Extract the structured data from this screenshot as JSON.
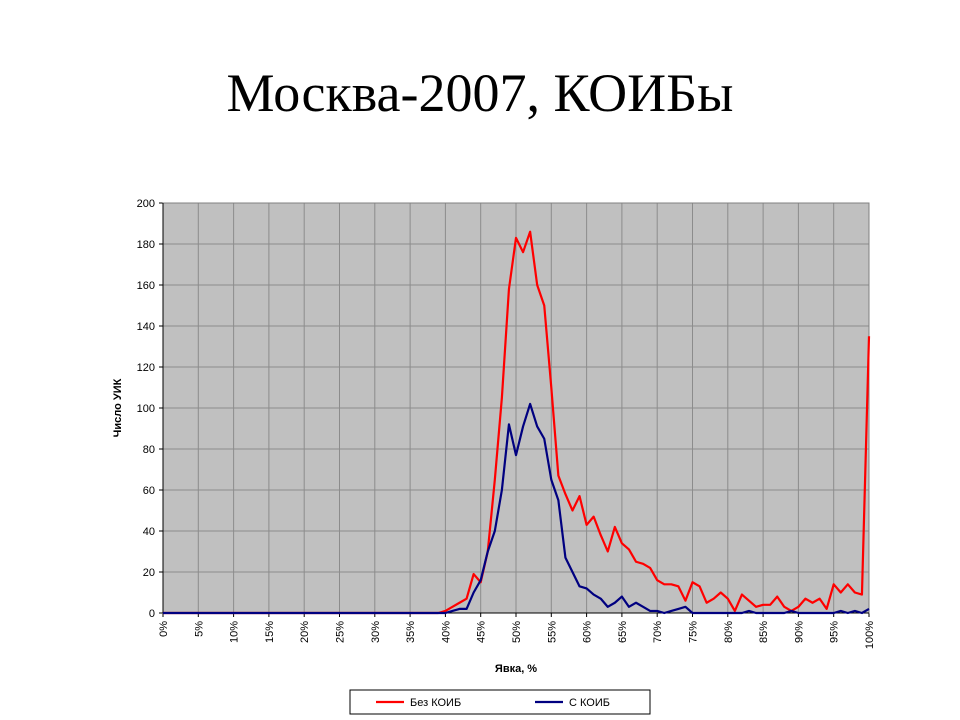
{
  "slide": {
    "title": "Москва-2007, КОИБы"
  },
  "chart_data": {
    "type": "line",
    "xlabel": "Явка, %",
    "ylabel": "Число УИК",
    "xlim": [
      0,
      100
    ],
    "ylim": [
      0,
      200
    ],
    "x_ticks": [
      "0%",
      "5%",
      "10%",
      "15%",
      "20%",
      "25%",
      "30%",
      "35%",
      "40%",
      "45%",
      "50%",
      "55%",
      "60%",
      "65%",
      "70%",
      "75%",
      "80%",
      "85%",
      "90%",
      "95%",
      "100%"
    ],
    "y_ticks": [
      "0",
      "20",
      "40",
      "60",
      "80",
      "100",
      "120",
      "140",
      "160",
      "180",
      "200"
    ],
    "grid": true,
    "legend_position": "bottom",
    "colors": {
      "plot_bg": "#c0c0c0",
      "grid": "#8c8c8c",
      "series1": "#ff0000",
      "series2": "#000080"
    },
    "x": [
      0,
      1,
      2,
      3,
      4,
      5,
      6,
      7,
      8,
      9,
      10,
      11,
      12,
      13,
      14,
      15,
      16,
      17,
      18,
      19,
      20,
      21,
      22,
      23,
      24,
      25,
      26,
      27,
      28,
      29,
      30,
      31,
      32,
      33,
      34,
      35,
      36,
      37,
      38,
      39,
      40,
      41,
      42,
      43,
      44,
      45,
      46,
      47,
      48,
      49,
      50,
      51,
      52,
      53,
      54,
      55,
      56,
      57,
      58,
      59,
      60,
      61,
      62,
      63,
      64,
      65,
      66,
      67,
      68,
      69,
      70,
      71,
      72,
      73,
      74,
      75,
      76,
      77,
      78,
      79,
      80,
      81,
      82,
      83,
      84,
      85,
      86,
      87,
      88,
      89,
      90,
      91,
      92,
      93,
      94,
      95,
      96,
      97,
      98,
      99,
      100
    ],
    "series": [
      {
        "name": "Без КОИБ",
        "values": [
          0,
          0,
          0,
          0,
          0,
          0,
          0,
          0,
          0,
          0,
          0,
          0,
          0,
          0,
          0,
          0,
          0,
          0,
          0,
          0,
          0,
          0,
          0,
          0,
          0,
          0,
          0,
          0,
          0,
          0,
          0,
          0,
          0,
          0,
          0,
          0,
          0,
          0,
          0,
          0,
          1,
          3,
          5,
          7,
          19,
          15,
          30,
          65,
          105,
          158,
          183,
          176,
          186,
          160,
          150,
          110,
          67,
          58,
          50,
          57,
          43,
          47,
          38,
          30,
          42,
          34,
          31,
          25,
          24,
          22,
          16,
          14,
          14,
          13,
          6,
          15,
          13,
          5,
          7,
          10,
          7,
          1,
          9,
          6,
          3,
          4,
          4,
          8,
          3,
          1,
          3,
          7,
          5,
          7,
          2,
          14,
          10,
          14,
          10,
          9,
          135
        ]
      },
      {
        "name": "С КОИБ",
        "values": [
          0,
          0,
          0,
          0,
          0,
          0,
          0,
          0,
          0,
          0,
          0,
          0,
          0,
          0,
          0,
          0,
          0,
          0,
          0,
          0,
          0,
          0,
          0,
          0,
          0,
          0,
          0,
          0,
          0,
          0,
          0,
          0,
          0,
          0,
          0,
          0,
          0,
          0,
          0,
          0,
          0,
          1,
          2,
          2,
          10,
          16,
          30,
          40,
          60,
          92,
          77,
          91,
          102,
          91,
          85,
          65,
          55,
          27,
          20,
          13,
          12,
          9,
          7,
          3,
          5,
          8,
          3,
          5,
          3,
          1,
          1,
          0,
          1,
          2,
          3,
          0,
          0,
          0,
          0,
          0,
          0,
          0,
          0,
          1,
          0,
          0,
          0,
          0,
          0,
          1,
          0,
          0,
          0,
          0,
          0,
          0,
          1,
          0,
          1,
          0,
          2
        ]
      }
    ]
  }
}
